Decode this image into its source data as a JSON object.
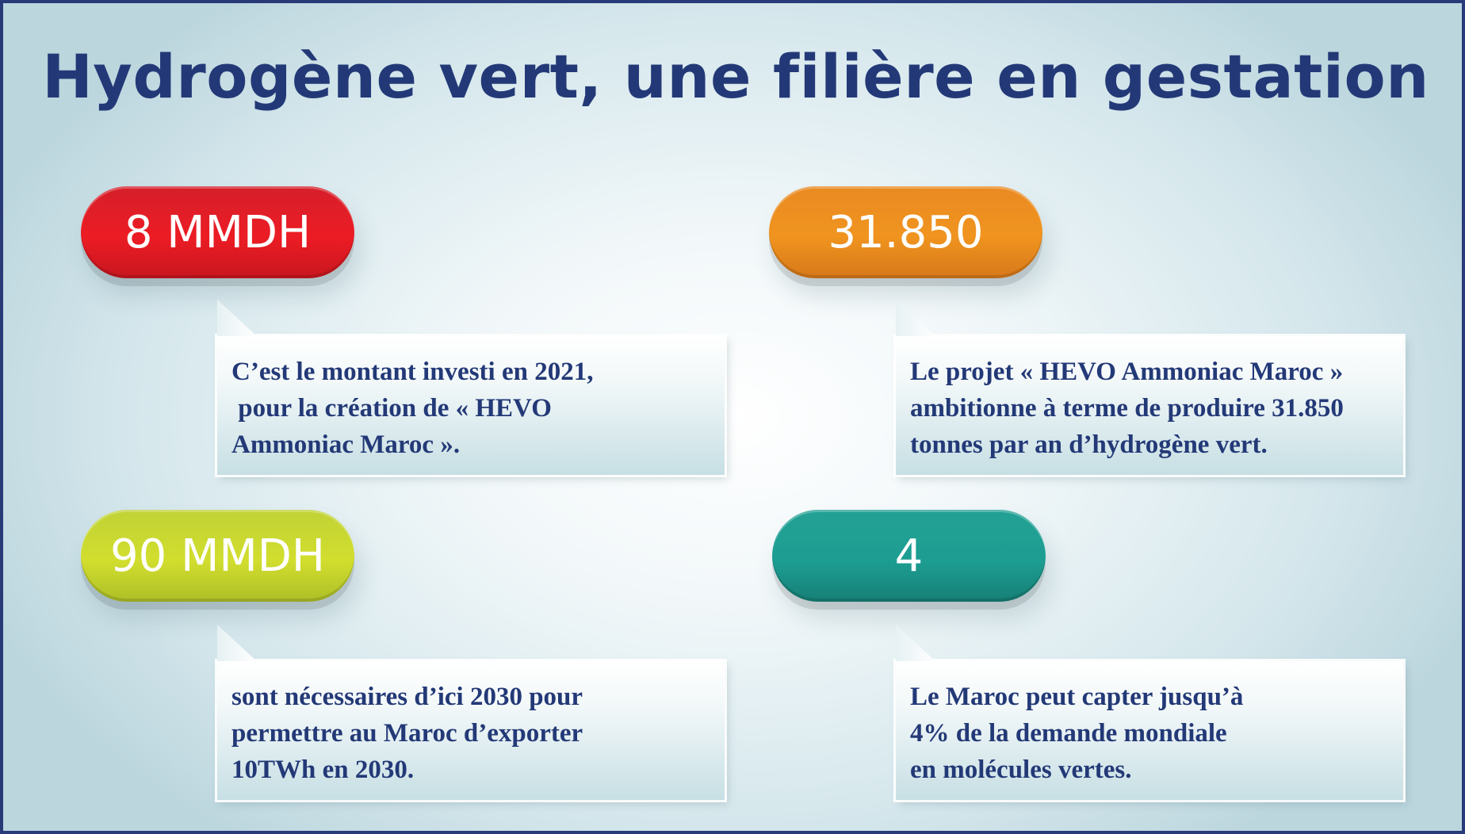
{
  "title": "Hydrogène vert, une filière en gestation",
  "colors": {
    "title": "#233977",
    "border": "#283a77",
    "red": "#ec1c24",
    "orange": "#f0941f",
    "lime": "#d2de2e",
    "teal": "#1d9e92"
  },
  "cards": [
    {
      "value": "8 MMDH",
      "color": "red",
      "lines": [
        "C’est le montant investi en 2021,",
        " pour la création de « HEVO",
        "Ammoniac Maroc »."
      ]
    },
    {
      "value": "31.850",
      "color": "orange",
      "lines": [
        "Le projet « HEVO Ammoniac Maroc »",
        "ambitionne à terme de produire 31.850",
        "tonnes par an d’hydrogène vert."
      ]
    },
    {
      "value": "90 MMDH",
      "color": "lime",
      "lines": [
        "sont nécessaires d’ici 2030 pour",
        "permettre au Maroc d’exporter",
        "10TWh en 2030."
      ]
    },
    {
      "value": "4",
      "color": "teal",
      "lines": [
        "Le Maroc peut capter jusqu’à",
        "4% de la demande mondiale",
        "en molécules vertes."
      ]
    }
  ]
}
